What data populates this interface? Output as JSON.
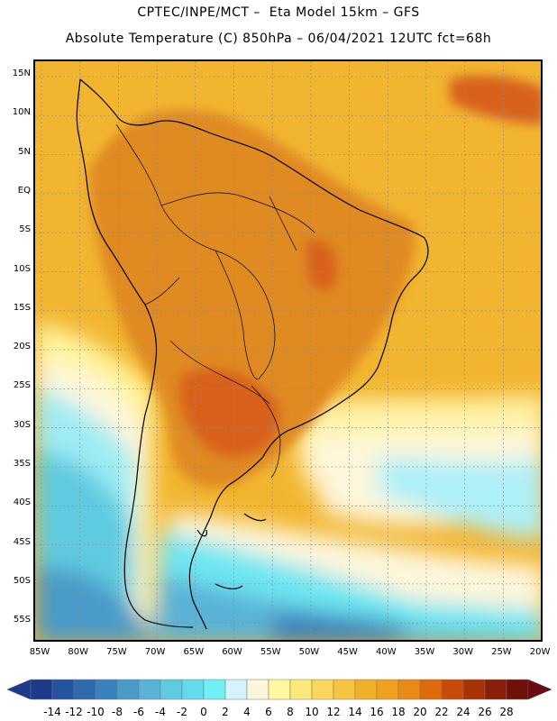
{
  "title": {
    "line1": "CPTEC/INPE/MCT –  Eta Model 15km – GFS",
    "line2": "Absolute Temperature (C) 850hPa – 06/04/2021 12UTC fct=68h"
  },
  "axes": {
    "lat_labels": [
      "15N",
      "10N",
      "5N",
      "EQ",
      "5S",
      "10S",
      "15S",
      "20S",
      "25S",
      "30S",
      "35S",
      "40S",
      "45S",
      "50S",
      "55S"
    ],
    "lon_labels": [
      "85W",
      "80W",
      "75W",
      "70W",
      "65W",
      "60W",
      "55W",
      "50W",
      "45W",
      "40W",
      "35W",
      "30W",
      "25W",
      "20W"
    ]
  },
  "colorbar": {
    "labels": [
      "-14",
      "-12",
      "-10",
      "-8",
      "-6",
      "-4",
      "-2",
      "0",
      "2",
      "4",
      "6",
      "8",
      "10",
      "12",
      "14",
      "16",
      "18",
      "20",
      "22",
      "24",
      "26",
      "28"
    ],
    "colors": [
      "#1e3a8a",
      "#2453a0",
      "#2e6aae",
      "#3a82bc",
      "#4a9ac8",
      "#5ab2d6",
      "#5ecbe0",
      "#62dcea",
      "#6ef0f4",
      "#d2f4fa",
      "#fdf6dc",
      "#fff8a0",
      "#fde97a",
      "#fad75a",
      "#f5c540",
      "#f0b128",
      "#eea21e",
      "#e88a14",
      "#de6a0a",
      "#c84a08",
      "#a83206",
      "#8a1e08",
      "#6e1208"
    ],
    "left_arrow_color": "#1e3a8a",
    "right_arrow_color": "#6e0a12"
  },
  "colors": {
    "ocean_warm": "#f2b530",
    "land_hot": "#e08a20",
    "hot_core": "#d8621a",
    "pale_yellow": "#fef3a8",
    "cyan": "#6ee6f2",
    "deep_blue": "#2e6aae",
    "coast": "#000000"
  }
}
